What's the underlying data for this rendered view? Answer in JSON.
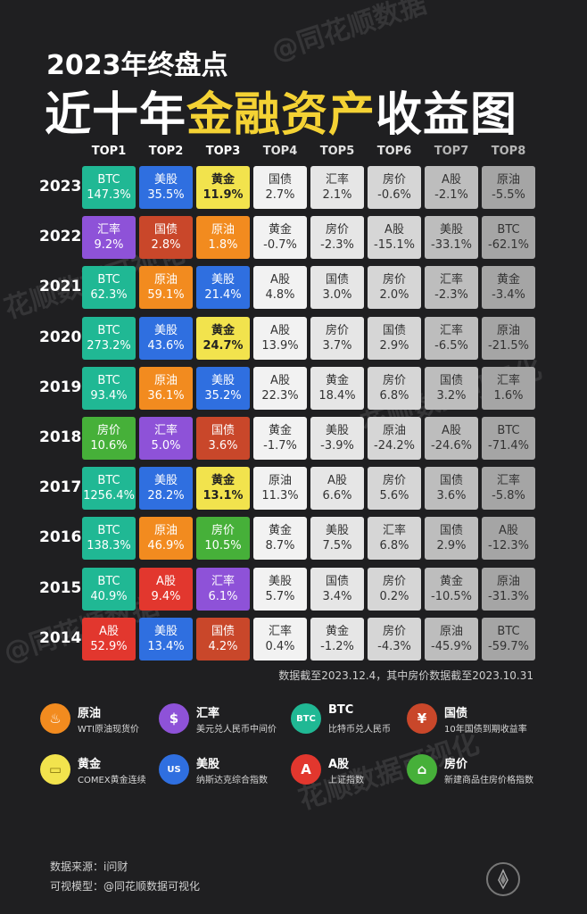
{
  "watermark": "@同花顺数据",
  "watermark2": "花顺数据可视化",
  "header": {
    "line1": "2023年终盘点",
    "line2_pre": "近十年",
    "line2_hl": "金融资产",
    "line2_post": "收益图"
  },
  "colors": {
    "BTC": "#20b894",
    "美股": "#2f6fe0",
    "黄金": "#f2e34d",
    "原油": "#f28b1f",
    "汇率": "#8e52d8",
    "国债": "#c9472a",
    "A股": "#e2372e",
    "房价": "#46b039",
    "TOP4": "#f2f2f2",
    "TOP5": "#e6e6e6",
    "TOP6": "#d6d6d6",
    "TOP7": "#bdbdbd",
    "TOP8": "#a5a5a5"
  },
  "chart_data": {
    "type": "table",
    "columns": [
      "TOP1",
      "TOP2",
      "TOP3",
      "TOP4",
      "TOP5",
      "TOP6",
      "TOP7",
      "TOP8"
    ],
    "rows": [
      {
        "year": "2023",
        "cells": [
          [
            "BTC",
            "147.3%"
          ],
          [
            "美股",
            "35.5%"
          ],
          [
            "黄金",
            "11.9%"
          ],
          [
            "国债",
            "2.7%"
          ],
          [
            "汇率",
            "2.1%"
          ],
          [
            "房价",
            "-0.6%"
          ],
          [
            "A股",
            "-2.1%"
          ],
          [
            "原油",
            "-5.5%"
          ]
        ]
      },
      {
        "year": "2022",
        "cells": [
          [
            "汇率",
            "9.2%"
          ],
          [
            "国债",
            "2.8%"
          ],
          [
            "原油",
            "1.8%"
          ],
          [
            "黄金",
            "-0.7%"
          ],
          [
            "房价",
            "-2.3%"
          ],
          [
            "A股",
            "-15.1%"
          ],
          [
            "美股",
            "-33.1%"
          ],
          [
            "BTC",
            "-62.1%"
          ]
        ]
      },
      {
        "year": "2021",
        "cells": [
          [
            "BTC",
            "62.3%"
          ],
          [
            "原油",
            "59.1%"
          ],
          [
            "美股",
            "21.4%"
          ],
          [
            "A股",
            "4.8%"
          ],
          [
            "国债",
            "3.0%"
          ],
          [
            "房价",
            "2.0%"
          ],
          [
            "汇率",
            "-2.3%"
          ],
          [
            "黄金",
            "-3.4%"
          ]
        ]
      },
      {
        "year": "2020",
        "cells": [
          [
            "BTC",
            "273.2%"
          ],
          [
            "美股",
            "43.6%"
          ],
          [
            "黄金",
            "24.7%"
          ],
          [
            "A股",
            "13.9%"
          ],
          [
            "房价",
            "3.7%"
          ],
          [
            "国债",
            "2.9%"
          ],
          [
            "汇率",
            "-6.5%"
          ],
          [
            "原油",
            "-21.5%"
          ]
        ]
      },
      {
        "year": "2019",
        "cells": [
          [
            "BTC",
            "93.4%"
          ],
          [
            "原油",
            "36.1%"
          ],
          [
            "美股",
            "35.2%"
          ],
          [
            "A股",
            "22.3%"
          ],
          [
            "黄金",
            "18.4%"
          ],
          [
            "房价",
            "6.8%"
          ],
          [
            "国债",
            "3.2%"
          ],
          [
            "汇率",
            "1.6%"
          ]
        ]
      },
      {
        "year": "2018",
        "cells": [
          [
            "房价",
            "10.6%"
          ],
          [
            "汇率",
            "5.0%"
          ],
          [
            "国债",
            "3.6%"
          ],
          [
            "黄金",
            "-1.7%"
          ],
          [
            "美股",
            "-3.9%"
          ],
          [
            "原油",
            "-24.2%"
          ],
          [
            "A股",
            "-24.6%"
          ],
          [
            "BTC",
            "-71.4%"
          ]
        ]
      },
      {
        "year": "2017",
        "cells": [
          [
            "BTC",
            "1256.4%"
          ],
          [
            "美股",
            "28.2%"
          ],
          [
            "黄金",
            "13.1%"
          ],
          [
            "原油",
            "11.3%"
          ],
          [
            "A股",
            "6.6%"
          ],
          [
            "房价",
            "5.6%"
          ],
          [
            "国债",
            "3.6%"
          ],
          [
            "汇率",
            "-5.8%"
          ]
        ]
      },
      {
        "year": "2016",
        "cells": [
          [
            "BTC",
            "138.3%"
          ],
          [
            "原油",
            "46.9%"
          ],
          [
            "房价",
            "10.5%"
          ],
          [
            "黄金",
            "8.7%"
          ],
          [
            "美股",
            "7.5%"
          ],
          [
            "汇率",
            "6.8%"
          ],
          [
            "国债",
            "2.9%"
          ],
          [
            "A股",
            "-12.3%"
          ]
        ]
      },
      {
        "year": "2015",
        "cells": [
          [
            "BTC",
            "40.9%"
          ],
          [
            "A股",
            "9.4%"
          ],
          [
            "汇率",
            "6.1%"
          ],
          [
            "美股",
            "5.7%"
          ],
          [
            "国债",
            "3.4%"
          ],
          [
            "房价",
            "0.2%"
          ],
          [
            "黄金",
            "-10.5%"
          ],
          [
            "原油",
            "-31.3%"
          ]
        ]
      },
      {
        "year": "2014",
        "cells": [
          [
            "A股",
            "52.9%"
          ],
          [
            "美股",
            "13.4%"
          ],
          [
            "国债",
            "4.2%"
          ],
          [
            "汇率",
            "0.4%"
          ],
          [
            "黄金",
            "-1.2%"
          ],
          [
            "房价",
            "-4.3%"
          ],
          [
            "原油",
            "-45.9%"
          ],
          [
            "BTC",
            "-59.7%"
          ]
        ]
      }
    ]
  },
  "note": "数据截至2023.12.4，其中房价数据截至2023.10.31",
  "legend": [
    {
      "name": "原油",
      "desc": "WTI原油现货价",
      "icon": "oil-drop-icon",
      "glyph": "♨"
    },
    {
      "name": "汇率",
      "desc": "美元兑人民币中间价",
      "icon": "dollar-icon",
      "glyph": "$"
    },
    {
      "name": "BTC",
      "desc": "比特币兑人民币",
      "icon": "btc-icon",
      "glyph": "BTC"
    },
    {
      "name": "国债",
      "desc": "10年国债到期收益率",
      "icon": "bond-icon",
      "glyph": "¥"
    },
    {
      "name": "黄金",
      "desc": "COMEX黄金连续",
      "icon": "gold-bar-icon",
      "glyph": "▭"
    },
    {
      "name": "美股",
      "desc": "纳斯达克综合指数",
      "icon": "us-flag-icon",
      "glyph": "US"
    },
    {
      "name": "A股",
      "desc": "上证指数",
      "icon": "a-share-icon",
      "glyph": "A"
    },
    {
      "name": "房价",
      "desc": "新建商品住房价格指数",
      "icon": "house-icon",
      "glyph": "⌂"
    }
  ],
  "footer": {
    "source": "数据来源：i问财",
    "model": "可视模型：@同花顺数据可视化"
  }
}
